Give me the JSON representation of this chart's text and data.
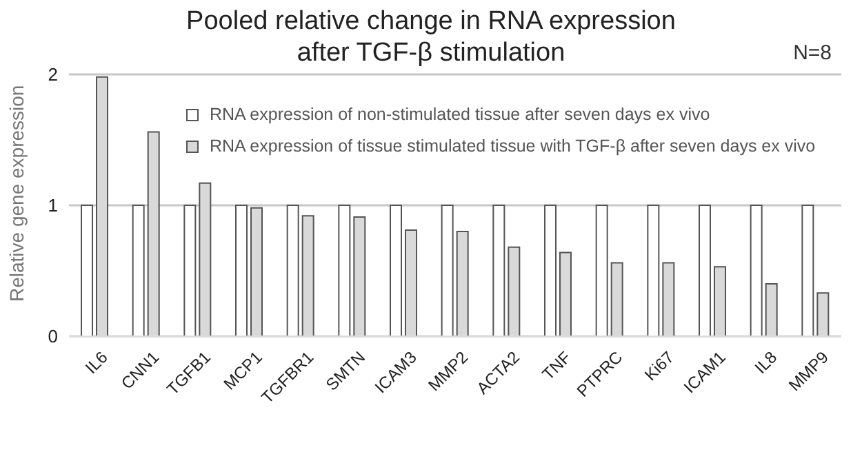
{
  "chart_data": {
    "type": "bar",
    "title": "Pooled relative change in RNA expression\nafter TGF-β stimulation",
    "ylabel": "Relative gene expression",
    "annotations": [
      "N=8"
    ],
    "categories": [
      "IL6",
      "CNN1",
      "TGFB1",
      "MCP1",
      "TGFBR1",
      "SMTN",
      "ICAM3",
      "MMP2",
      "ACTA2",
      "TNF",
      "PTPRC",
      "Ki67",
      "ICAM1",
      "IL8",
      "MMP9"
    ],
    "series": [
      {
        "name": "RNA expression of non-stimulated tissue after seven days ex vivo",
        "color": "#ffffff",
        "values": [
          1,
          1,
          1,
          1,
          1,
          1,
          1,
          1,
          1,
          1,
          1,
          1,
          1,
          1,
          1
        ]
      },
      {
        "name": "RNA expression of tissue stimulated tissue with TGF-β after seven days ex vivo",
        "color": "#d9d9d9",
        "values": [
          1.98,
          1.56,
          1.17,
          0.98,
          0.92,
          0.91,
          0.81,
          0.8,
          0.68,
          0.64,
          0.56,
          0.56,
          0.53,
          0.4,
          0.33
        ]
      }
    ],
    "ylim": [
      0,
      2
    ],
    "yticks": [
      0,
      1,
      2
    ],
    "grid": "y",
    "legend": "top right"
  }
}
